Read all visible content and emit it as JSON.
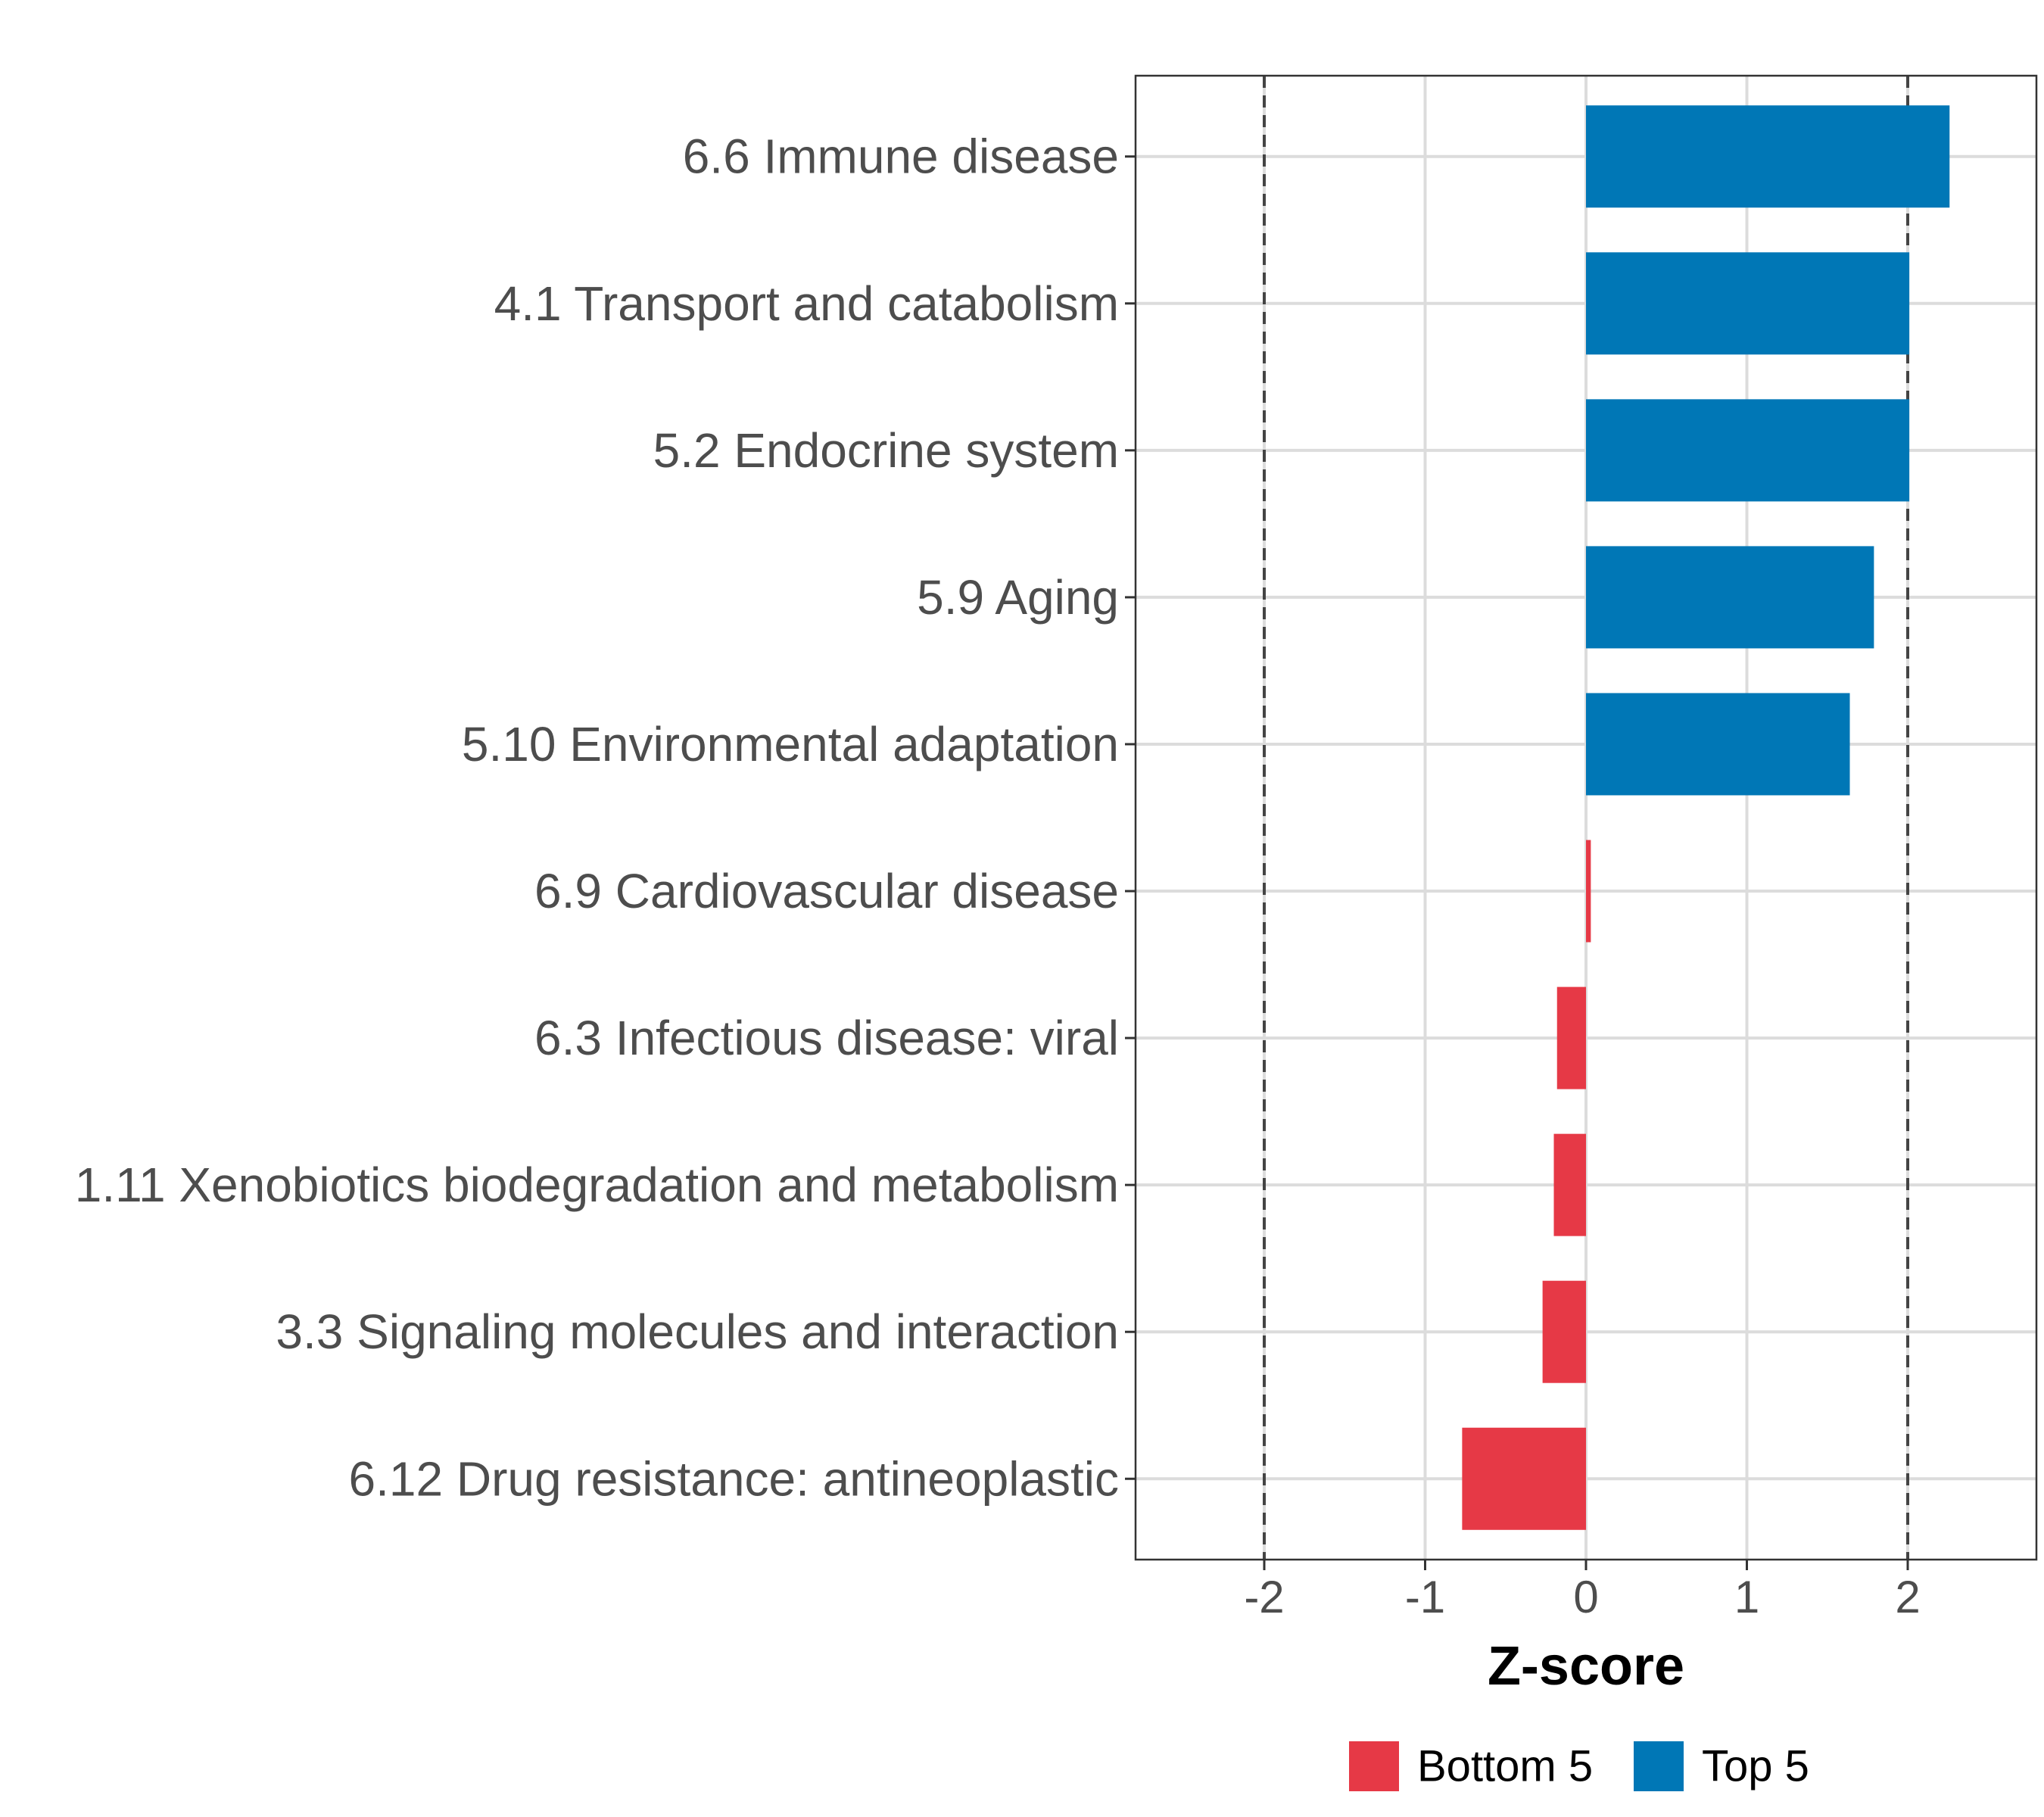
{
  "chart_data": {
    "type": "bar",
    "orientation": "horizontal",
    "xlabel": "Z-score",
    "xlim": [
      -2.8,
      2.8
    ],
    "xticks": [
      -2,
      -1,
      0,
      1,
      2
    ],
    "xtick_labels": [
      "-2",
      "-1",
      "0",
      "1",
      "2"
    ],
    "reference_lines": [
      -2,
      2
    ],
    "grid": true,
    "legend_position": "bottom",
    "categories": [
      "6.6 Immune disease",
      "4.1 Transport and catabolism",
      "5.2 Endocrine system",
      "5.9 Aging",
      "5.10 Environmental adaptation",
      "6.9 Cardiovascular disease",
      "6.3 Infectious disease: viral",
      "1.11 Xenobiotics biodegradation and metabolism",
      "3.3 Signaling molecules and interaction",
      "6.12 Drug resistance: antineoplastic"
    ],
    "values": [
      2.26,
      2.01,
      2.01,
      1.79,
      1.64,
      0.03,
      -0.18,
      -0.2,
      -0.27,
      -0.77
    ],
    "groups": [
      "Top 5",
      "Top 5",
      "Top 5",
      "Top 5",
      "Top 5",
      "Bottom 5",
      "Bottom 5",
      "Bottom 5",
      "Bottom 5",
      "Bottom 5"
    ],
    "legend": [
      {
        "label": "Bottom 5",
        "color": "#e63946"
      },
      {
        "label": "Top 5",
        "color": "#0077b6"
      }
    ]
  }
}
